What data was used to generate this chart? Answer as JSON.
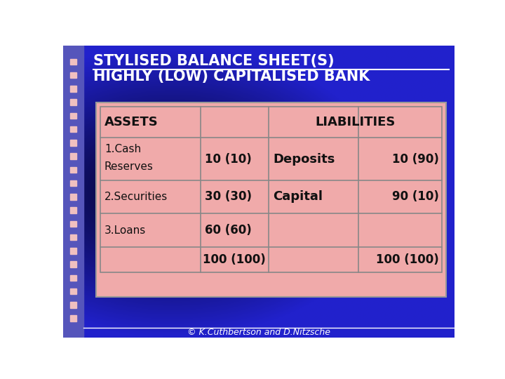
{
  "title_line1": "STYLISED BALANCE SHEET(S)",
  "title_line2": "HIGHLY (LOW) CAPITALISED BANK",
  "title_color": "#FFFFFF",
  "bg_color_main": "#2222CC",
  "bg_color_dark": "#000020",
  "left_strip_color": "#6666CC",
  "dot_color": "#F0C0C0",
  "table_bg": "#F0AAAA",
  "table_border_color": "#999999",
  "footer_text": "© K.Cuthbertson and D.Nitzsche",
  "footer_color": "#FFFFFF",
  "header_assets": "ASSETS",
  "header_liabilities": "LIABILITIES",
  "row1_col1a": "1.Cash",
  "row1_col1b": "Reserves",
  "row1_col2": "10 (10)",
  "row1_col3": "Deposits",
  "row1_col4": "10 (90)",
  "row2_col1": "2.Securities",
  "row2_col2": "30 (30)",
  "row2_col3": "Capital",
  "row2_col4": "90 (10)",
  "row3_col1": "3.Loans",
  "row3_col2": "60 (60)",
  "total_left": "100 (100)",
  "total_right": "100 (100)",
  "text_dark": "#111111",
  "text_color": "#1A1A6A"
}
